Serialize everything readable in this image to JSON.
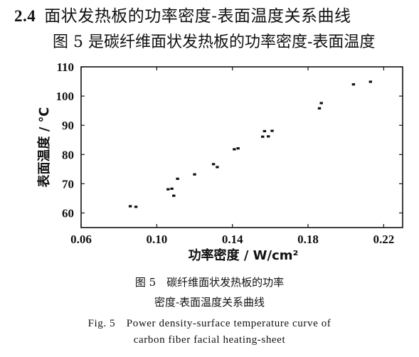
{
  "section": {
    "number": "2.4",
    "title": "面状发热板的功率密度-表面温度关系曲线"
  },
  "intro_text": "图 5 是碳纤维面状发热板的功率密度-表面温度",
  "caption": {
    "zh_line1": "图 5　碳纤维面状发热板的功率",
    "zh_line2": "密度-表面温度关系曲线",
    "en_line1": "Fig. 5　Power density-surface temperature curve of",
    "en_line2": "carbon fiber facial heating-sheet"
  },
  "chart_data": {
    "type": "scatter",
    "xlabel": "功率密度 / W/cm²",
    "ylabel": "表面温度 / ℃",
    "xlim": [
      0.06,
      0.23
    ],
    "ylim": [
      55,
      110
    ],
    "xticks": [
      "0.06",
      "0.10",
      "0.14",
      "0.18",
      "0.22"
    ],
    "xtick_values": [
      0.06,
      0.1,
      0.14,
      0.18,
      0.22
    ],
    "yticks": [
      "60",
      "70",
      "80",
      "90",
      "100",
      "110"
    ],
    "ytick_values": [
      60,
      70,
      80,
      90,
      100,
      110
    ],
    "grid": false,
    "points": [
      {
        "x": 0.086,
        "y": 62.3
      },
      {
        "x": 0.089,
        "y": 62.1
      },
      {
        "x": 0.106,
        "y": 68.1
      },
      {
        "x": 0.108,
        "y": 68.3
      },
      {
        "x": 0.109,
        "y": 65.9
      },
      {
        "x": 0.111,
        "y": 71.7
      },
      {
        "x": 0.12,
        "y": 73.2
      },
      {
        "x": 0.13,
        "y": 76.7
      },
      {
        "x": 0.132,
        "y": 75.7
      },
      {
        "x": 0.141,
        "y": 81.8
      },
      {
        "x": 0.143,
        "y": 82.1
      },
      {
        "x": 0.156,
        "y": 86.1
      },
      {
        "x": 0.157,
        "y": 88.0
      },
      {
        "x": 0.159,
        "y": 86.2
      },
      {
        "x": 0.161,
        "y": 88.1
      },
      {
        "x": 0.186,
        "y": 95.8
      },
      {
        "x": 0.187,
        "y": 97.6
      },
      {
        "x": 0.204,
        "y": 104.0
      },
      {
        "x": 0.213,
        "y": 104.9
      }
    ]
  }
}
